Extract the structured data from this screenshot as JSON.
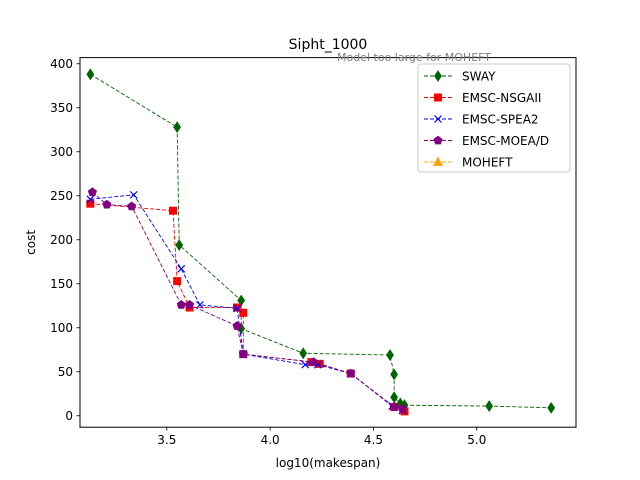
{
  "chart_data": {
    "type": "line",
    "title": "Sipht_1000",
    "annotation": "Model too large for MOHEFT",
    "xlabel": "log10(makespan)",
    "ylabel": "cost",
    "xlim": [
      3.08,
      5.48
    ],
    "ylim": [
      -13,
      407
    ],
    "xticks": [
      "3.5",
      "4.0",
      "4.5",
      "5.0"
    ],
    "yticks": [
      "0",
      "50",
      "100",
      "150",
      "200",
      "250",
      "300",
      "350",
      "400"
    ],
    "legend_position": "top-right",
    "series": [
      {
        "name": "SWAY",
        "color": "#006400",
        "marker": "diamond",
        "points": [
          [
            3.13,
            388
          ],
          [
            3.55,
            328
          ],
          [
            3.56,
            194
          ],
          [
            3.86,
            131
          ],
          [
            3.86,
            99
          ],
          [
            4.16,
            71
          ],
          [
            4.58,
            69
          ],
          [
            4.6,
            47
          ],
          [
            4.6,
            21
          ],
          [
            4.63,
            14
          ],
          [
            4.65,
            12
          ],
          [
            5.06,
            11
          ],
          [
            5.36,
            9
          ]
        ]
      },
      {
        "name": "EMSC-NSGAII",
        "color": "#ff0000",
        "marker": "square",
        "points": [
          [
            3.13,
            241
          ],
          [
            3.53,
            233
          ],
          [
            3.55,
            153
          ],
          [
            3.61,
            123
          ],
          [
            3.84,
            123
          ],
          [
            3.87,
            117
          ],
          [
            3.87,
            70
          ],
          [
            4.2,
            61
          ],
          [
            4.24,
            59
          ],
          [
            4.39,
            48
          ],
          [
            4.6,
            10
          ],
          [
            4.65,
            5
          ]
        ]
      },
      {
        "name": "EMSC-SPEA2",
        "color": "#0000ff",
        "marker": "x",
        "points": [
          [
            3.13,
            246
          ],
          [
            3.34,
            251
          ],
          [
            3.57,
            167
          ],
          [
            3.66,
            126
          ],
          [
            3.84,
            122
          ],
          [
            3.87,
            70
          ],
          [
            4.17,
            58
          ],
          [
            4.23,
            58
          ],
          [
            4.39,
            48
          ],
          [
            4.59,
            11
          ],
          [
            4.64,
            6
          ]
        ]
      },
      {
        "name": "EMSC-MOEA/D",
        "color": "#800080",
        "marker": "pentagon",
        "points": [
          [
            3.14,
            254
          ],
          [
            3.21,
            240
          ],
          [
            3.33,
            238
          ],
          [
            3.57,
            126
          ],
          [
            3.61,
            126
          ],
          [
            3.84,
            102
          ],
          [
            3.87,
            70
          ],
          [
            4.21,
            61
          ],
          [
            4.39,
            48
          ],
          [
            4.6,
            10
          ],
          [
            4.64,
            8
          ]
        ]
      },
      {
        "name": "MOHEFT",
        "color": "#ffa500",
        "marker": "triangle",
        "points": []
      }
    ]
  }
}
